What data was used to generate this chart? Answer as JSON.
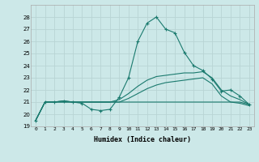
{
  "xlabel": "Humidex (Indice chaleur)",
  "background_color": "#cce8e8",
  "grid_color": "#b8d4d4",
  "line_color": "#1a7a6e",
  "x_values": [
    0,
    1,
    2,
    3,
    4,
    5,
    6,
    7,
    8,
    9,
    10,
    11,
    12,
    13,
    14,
    15,
    16,
    17,
    18,
    19,
    20,
    21,
    22,
    23
  ],
  "series1": [
    19.5,
    21.0,
    21.0,
    21.1,
    21.0,
    20.9,
    20.4,
    20.3,
    20.4,
    21.4,
    23.0,
    26.0,
    27.5,
    28.0,
    27.0,
    26.7,
    25.1,
    24.0,
    23.6,
    22.9,
    21.9,
    22.0,
    21.5,
    20.8
  ],
  "series2": [
    19.5,
    21.0,
    21.0,
    21.1,
    21.0,
    21.0,
    21.0,
    21.0,
    21.0,
    21.2,
    21.7,
    22.3,
    22.8,
    23.1,
    23.2,
    23.3,
    23.4,
    23.4,
    23.5,
    23.0,
    22.0,
    21.5,
    21.2,
    20.8
  ],
  "series3": [
    19.5,
    21.0,
    21.0,
    21.0,
    21.0,
    21.0,
    21.0,
    21.0,
    21.0,
    21.0,
    21.3,
    21.7,
    22.1,
    22.4,
    22.6,
    22.7,
    22.8,
    22.9,
    23.0,
    22.5,
    21.5,
    21.0,
    20.9,
    20.7
  ],
  "series4": [
    19.5,
    21.0,
    21.0,
    21.0,
    21.0,
    21.0,
    21.0,
    21.0,
    21.0,
    21.0,
    21.0,
    21.0,
    21.0,
    21.0,
    21.0,
    21.0,
    21.0,
    21.0,
    21.0,
    21.0,
    21.0,
    21.0,
    21.0,
    20.8
  ],
  "ylim": [
    19,
    29
  ],
  "yticks": [
    19,
    20,
    21,
    22,
    23,
    24,
    25,
    26,
    27,
    28
  ],
  "xlim": [
    -0.5,
    23.5
  ]
}
